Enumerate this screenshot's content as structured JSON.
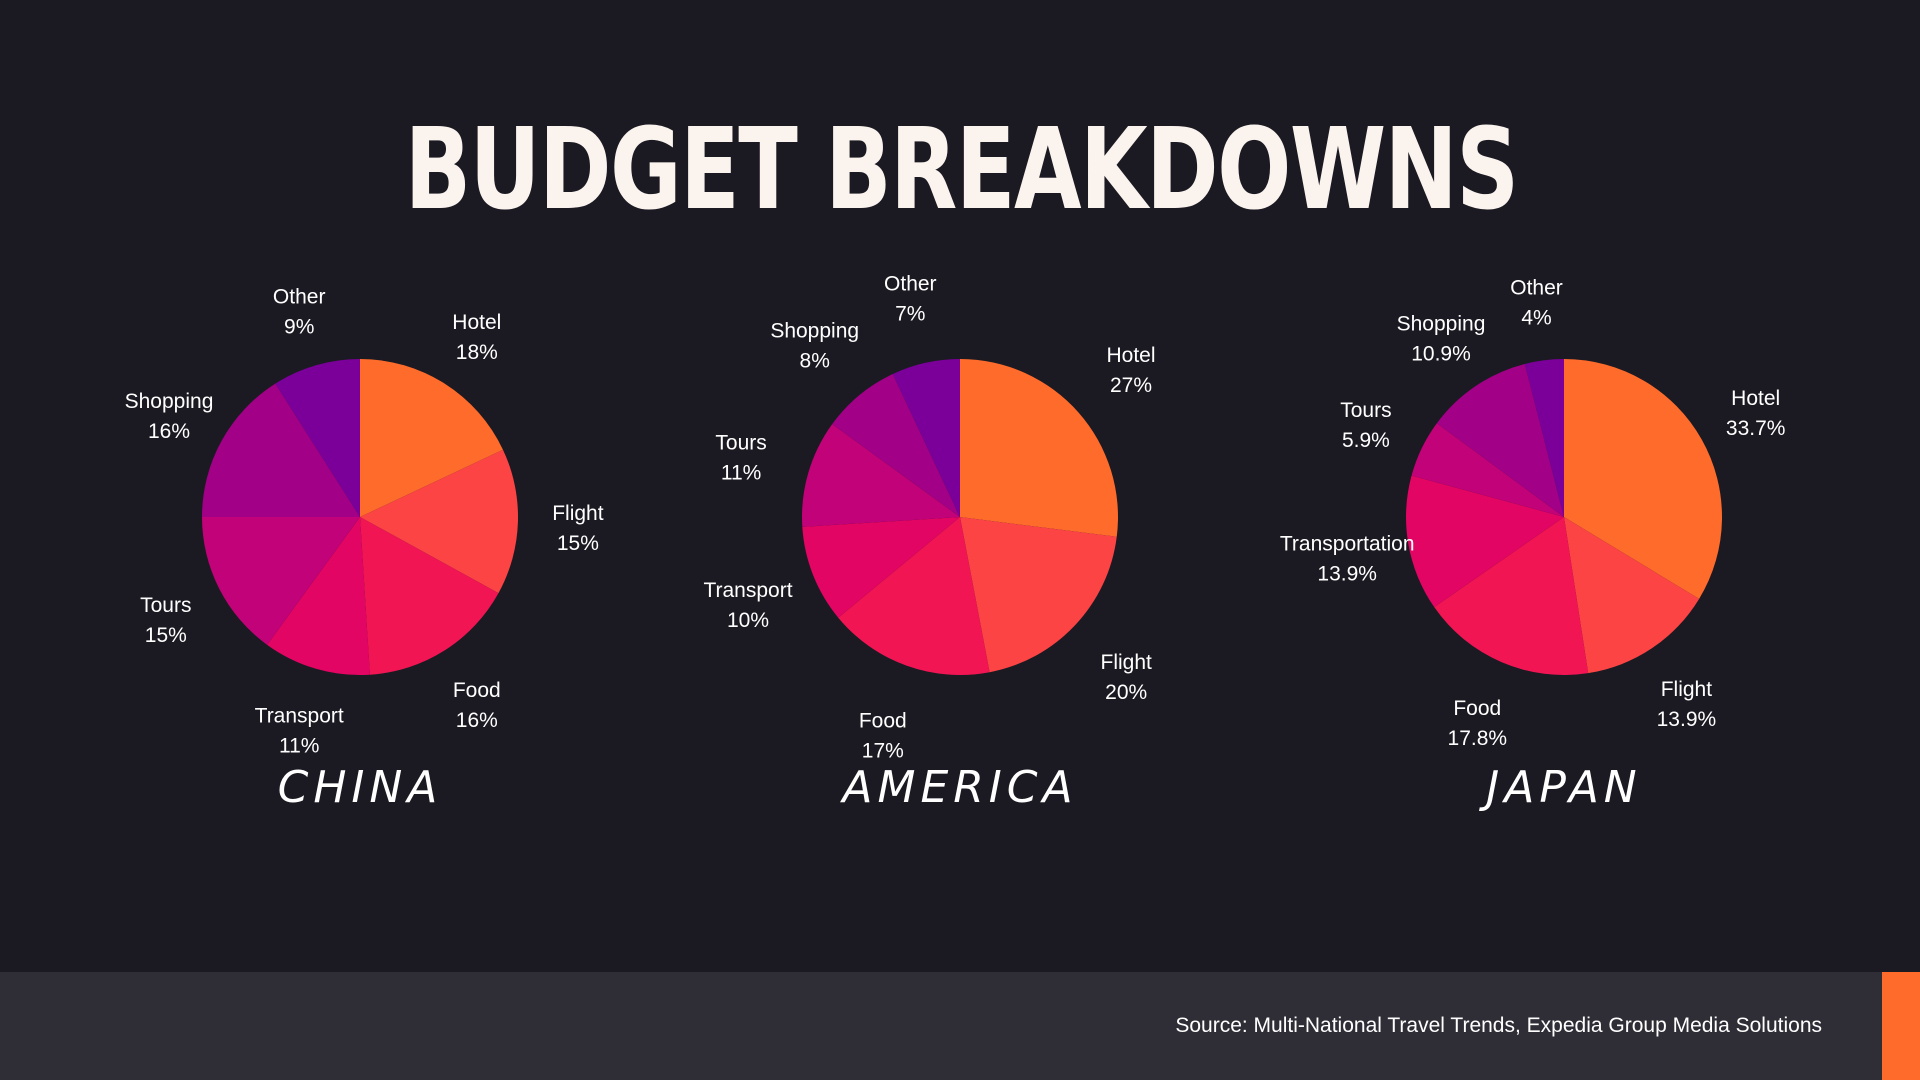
{
  "title": "BUDGET BREAKDOWNS",
  "footer": {
    "source": "Source: Multi-National Travel Trends, Expedia Group Media Solutions",
    "accent_color": "#ff6b2b"
  },
  "chart_data": [
    {
      "type": "pie",
      "title": "CHINA",
      "slices": [
        {
          "label": "Hotel",
          "value": 18,
          "display": "18%"
        },
        {
          "label": "Flight",
          "value": 15,
          "display": "15%"
        },
        {
          "label": "Food",
          "value": 16,
          "display": "16%"
        },
        {
          "label": "Transport",
          "value": 11,
          "display": "11%"
        },
        {
          "label": "Tours",
          "value": 15,
          "display": "15%"
        },
        {
          "label": "Shopping",
          "value": 16,
          "display": "16%"
        },
        {
          "label": "Other",
          "value": 9,
          "display": "9%"
        }
      ]
    },
    {
      "type": "pie",
      "title": "AMERICA",
      "slices": [
        {
          "label": "Hotel",
          "value": 27,
          "display": "27%"
        },
        {
          "label": "Flight",
          "value": 20,
          "display": "20%"
        },
        {
          "label": "Food",
          "value": 17,
          "display": "17%"
        },
        {
          "label": "Transport",
          "value": 10,
          "display": "10%"
        },
        {
          "label": "Tours",
          "value": 11,
          "display": "11%"
        },
        {
          "label": "Shopping",
          "value": 8,
          "display": "8%"
        },
        {
          "label": "Other",
          "value": 7,
          "display": "7%"
        }
      ]
    },
    {
      "type": "pie",
      "title": "JAPAN",
      "slices": [
        {
          "label": "Hotel",
          "value": 33.7,
          "display": "33.7%"
        },
        {
          "label": "Flight",
          "value": 13.9,
          "display": "13.9%"
        },
        {
          "label": "Food",
          "value": 17.8,
          "display": "17.8%"
        },
        {
          "label": "Transportation",
          "value": 13.9,
          "display": "13.9%"
        },
        {
          "label": "Tours",
          "value": 5.9,
          "display": "5.9%"
        },
        {
          "label": "Shopping",
          "value": 10.9,
          "display": "10.9%"
        },
        {
          "label": "Other",
          "value": 4,
          "display": "4%"
        }
      ]
    }
  ],
  "slice_colors": [
    "#ff6b2b",
    "#fc4444",
    "#f11554",
    "#e20563",
    "#c20278",
    "#a10087",
    "#7a0099"
  ]
}
